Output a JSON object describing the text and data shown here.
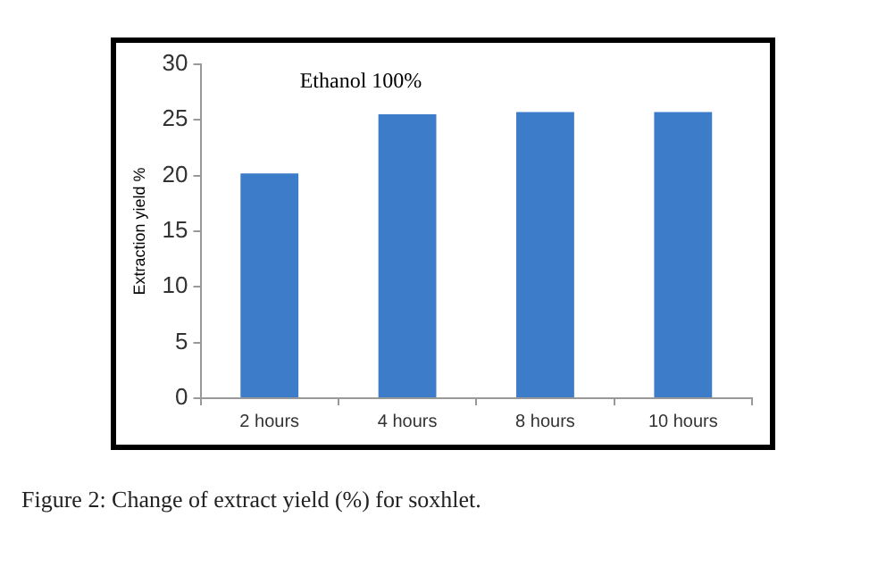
{
  "chart_data": {
    "type": "bar",
    "title": "Ethanol 100%",
    "ylabel": "Extraction yield %",
    "categories": [
      "2 hours",
      "4 hours",
      "8 hours",
      "10 hours"
    ],
    "values": [
      20.2,
      25.5,
      25.7,
      25.7
    ],
    "color": "#3d7cc9",
    "ylim": [
      0,
      30
    ],
    "yticks": [
      0,
      5,
      10,
      15,
      20,
      25,
      30
    ],
    "grid": false,
    "legend": false,
    "annotations": [
      "Figure 2: Change of extract yield (%) for soxhlet."
    ]
  }
}
